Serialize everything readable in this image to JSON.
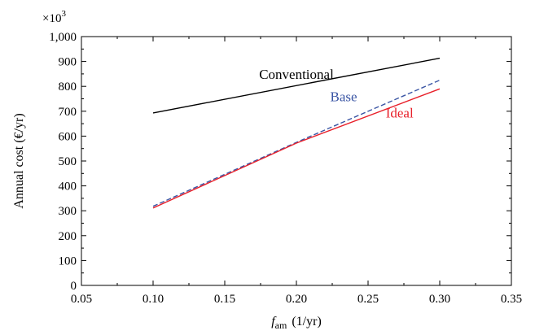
{
  "chart_data": {
    "type": "line",
    "title": "",
    "xlabel": "f",
    "xlabel_subscript": "am",
    "xlabel_units": "(1/yr)",
    "ylabel": "Annual cost (€/yr)",
    "y_multiplier": "×10",
    "y_multiplier_exp": "3",
    "xlim": [
      0.05,
      0.35
    ],
    "ylim": [
      0,
      1000
    ],
    "xticks": [
      0.05,
      0.1,
      0.15,
      0.2,
      0.25,
      0.3,
      0.35
    ],
    "xtick_labels": [
      "0.05",
      "0.10",
      "0.15",
      "0.20",
      "0.25",
      "0.30",
      "0.35"
    ],
    "yticks": [
      0,
      100,
      200,
      300,
      400,
      500,
      600,
      700,
      800,
      900,
      1000
    ],
    "ytick_labels": [
      "0",
      "100",
      "200",
      "300",
      "400",
      "500",
      "600",
      "700",
      "800",
      "900",
      "1,000"
    ],
    "grid": false,
    "series": [
      {
        "name": "Conventional",
        "color": "#000000",
        "dash": "solid",
        "x": [
          0.1,
          0.3
        ],
        "y": [
          693,
          913
        ]
      },
      {
        "name": "Base",
        "color": "#3a55a4",
        "dash": "dashed",
        "x": [
          0.1,
          0.2,
          0.3
        ],
        "y": [
          318,
          575,
          825
        ]
      },
      {
        "name": "Ideal",
        "color": "#e8202a",
        "dash": "solid",
        "x": [
          0.1,
          0.2,
          0.3
        ],
        "y": [
          311,
          572,
          790
        ]
      }
    ],
    "annotations": [
      {
        "text": "Conventional",
        "series": 0,
        "x": 0.2,
        "y": 830,
        "color": "#000000"
      },
      {
        "text": "Base",
        "series": 1,
        "x": 0.233,
        "y": 740,
        "color": "#3a55a4"
      },
      {
        "text": "Ideal",
        "series": 2,
        "x": 0.272,
        "y": 675,
        "color": "#e8202a"
      }
    ]
  }
}
